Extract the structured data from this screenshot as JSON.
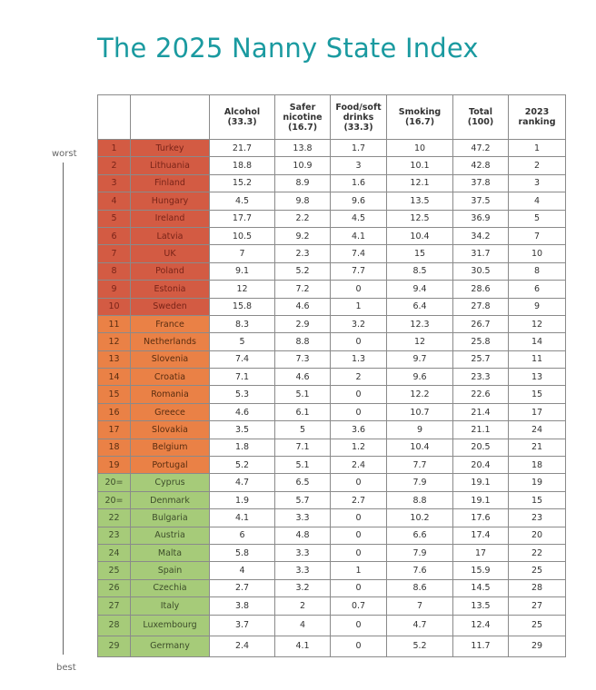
{
  "title": "The 2025 Nanny State Index",
  "scale": {
    "top_label": "worst",
    "bottom_label": "best"
  },
  "headers": {
    "rank": "",
    "country": "",
    "alcohol": [
      "Alcohol",
      "(33.3)"
    ],
    "nicotine": [
      "Safer",
      "nicotine",
      "(16.7)"
    ],
    "food": [
      "Food/soft",
      "drinks",
      "(33.3)"
    ],
    "smoking": [
      "Smoking",
      "(16.7)"
    ],
    "total": [
      "Total",
      "(100)"
    ],
    "ranking": [
      "2023",
      "ranking"
    ]
  },
  "colors": {
    "worst": "#d35b43",
    "middle": "#ea8146",
    "best": "#a6cb79",
    "title": "#1a9aa0"
  },
  "rows": [
    {
      "rank": "1",
      "country": "Turkey",
      "alcohol": "21.7",
      "nicotine": "13.8",
      "food": "1.7",
      "smoking": "10",
      "total": "47.2",
      "r2023": "1",
      "band": "red"
    },
    {
      "rank": "2",
      "country": "Lithuania",
      "alcohol": "18.8",
      "nicotine": "10.9",
      "food": "3",
      "smoking": "10.1",
      "total": "42.8",
      "r2023": "2",
      "band": "red"
    },
    {
      "rank": "3",
      "country": "Finland",
      "alcohol": "15.2",
      "nicotine": "8.9",
      "food": "1.6",
      "smoking": "12.1",
      "total": "37.8",
      "r2023": "3",
      "band": "red"
    },
    {
      "rank": "4",
      "country": "Hungary",
      "alcohol": "4.5",
      "nicotine": "9.8",
      "food": "9.6",
      "smoking": "13.5",
      "total": "37.5",
      "r2023": "4",
      "band": "red"
    },
    {
      "rank": "5",
      "country": "Ireland",
      "alcohol": "17.7",
      "nicotine": "2.2",
      "food": "4.5",
      "smoking": "12.5",
      "total": "36.9",
      "r2023": "5",
      "band": "red"
    },
    {
      "rank": "6",
      "country": "Latvia",
      "alcohol": "10.5",
      "nicotine": "9.2",
      "food": "4.1",
      "smoking": "10.4",
      "total": "34.2",
      "r2023": "7",
      "band": "red"
    },
    {
      "rank": "7",
      "country": "UK",
      "alcohol": "7",
      "nicotine": "2.3",
      "food": "7.4",
      "smoking": "15",
      "total": "31.7",
      "r2023": "10",
      "band": "red"
    },
    {
      "rank": "8",
      "country": "Poland",
      "alcohol": "9.1",
      "nicotine": "5.2",
      "food": "7.7",
      "smoking": "8.5",
      "total": "30.5",
      "r2023": "8",
      "band": "red"
    },
    {
      "rank": "9",
      "country": "Estonia",
      "alcohol": "12",
      "nicotine": "7.2",
      "food": "0",
      "smoking": "9.4",
      "total": "28.6",
      "r2023": "6",
      "band": "red"
    },
    {
      "rank": "10",
      "country": "Sweden",
      "alcohol": "15.8",
      "nicotine": "4.6",
      "food": "1",
      "smoking": "6.4",
      "total": "27.8",
      "r2023": "9",
      "band": "red"
    },
    {
      "rank": "11",
      "country": "France",
      "alcohol": "8.3",
      "nicotine": "2.9",
      "food": "3.2",
      "smoking": "12.3",
      "total": "26.7",
      "r2023": "12",
      "band": "orange"
    },
    {
      "rank": "12",
      "country": "Netherlands",
      "alcohol": "5",
      "nicotine": "8.8",
      "food": "0",
      "smoking": "12",
      "total": "25.8",
      "r2023": "14",
      "band": "orange"
    },
    {
      "rank": "13",
      "country": "Slovenia",
      "alcohol": "7.4",
      "nicotine": "7.3",
      "food": "1.3",
      "smoking": "9.7",
      "total": "25.7",
      "r2023": "11",
      "band": "orange"
    },
    {
      "rank": "14",
      "country": "Croatia",
      "alcohol": "7.1",
      "nicotine": "4.6",
      "food": "2",
      "smoking": "9.6",
      "total": "23.3",
      "r2023": "13",
      "band": "orange"
    },
    {
      "rank": "15",
      "country": "Romania",
      "alcohol": "5.3",
      "nicotine": "5.1",
      "food": "0",
      "smoking": "12.2",
      "total": "22.6",
      "r2023": "15",
      "band": "orange"
    },
    {
      "rank": "16",
      "country": "Greece",
      "alcohol": "4.6",
      "nicotine": "6.1",
      "food": "0",
      "smoking": "10.7",
      "total": "21.4",
      "r2023": "17",
      "band": "orange"
    },
    {
      "rank": "17",
      "country": "Slovakia",
      "alcohol": "3.5",
      "nicotine": "5",
      "food": "3.6",
      "smoking": "9",
      "total": "21.1",
      "r2023": "24",
      "band": "orange"
    },
    {
      "rank": "18",
      "country": "Belgium",
      "alcohol": "1.8",
      "nicotine": "7.1",
      "food": "1.2",
      "smoking": "10.4",
      "total": "20.5",
      "r2023": "21",
      "band": "orange"
    },
    {
      "rank": "19",
      "country": "Portugal",
      "alcohol": "5.2",
      "nicotine": "5.1",
      "food": "2.4",
      "smoking": "7.7",
      "total": "20.4",
      "r2023": "18",
      "band": "orange"
    },
    {
      "rank": "20=",
      "country": "Cyprus",
      "alcohol": "4.7",
      "nicotine": "6.5",
      "food": "0",
      "smoking": "7.9",
      "total": "19.1",
      "r2023": "19",
      "band": "green"
    },
    {
      "rank": "20=",
      "country": "Denmark",
      "alcohol": "1.9",
      "nicotine": "5.7",
      "food": "2.7",
      "smoking": "8.8",
      "total": "19.1",
      "r2023": "15",
      "band": "green"
    },
    {
      "rank": "22",
      "country": "Bulgaria",
      "alcohol": "4.1",
      "nicotine": "3.3",
      "food": "0",
      "smoking": "10.2",
      "total": "17.6",
      "r2023": "23",
      "band": "green"
    },
    {
      "rank": "23",
      "country": "Austria",
      "alcohol": "6",
      "nicotine": "4.8",
      "food": "0",
      "smoking": "6.6",
      "total": "17.4",
      "r2023": "20",
      "band": "green"
    },
    {
      "rank": "24",
      "country": "Malta",
      "alcohol": "5.8",
      "nicotine": "3.3",
      "food": "0",
      "smoking": "7.9",
      "total": "17",
      "r2023": "22",
      "band": "green"
    },
    {
      "rank": "25",
      "country": "Spain",
      "alcohol": "4",
      "nicotine": "3.3",
      "food": "1",
      "smoking": "7.6",
      "total": "15.9",
      "r2023": "25",
      "band": "green"
    },
    {
      "rank": "26",
      "country": "Czechia",
      "alcohol": "2.7",
      "nicotine": "3.2",
      "food": "0",
      "smoking": "8.6",
      "total": "14.5",
      "r2023": "28",
      "band": "green"
    },
    {
      "rank": "27",
      "country": "Italy",
      "alcohol": "3.8",
      "nicotine": "2",
      "food": "0.7",
      "smoking": "7",
      "total": "13.5",
      "r2023": "27",
      "band": "green"
    },
    {
      "rank": "28",
      "country": "Luxembourg",
      "alcohol": "3.7",
      "nicotine": "4",
      "food": "0",
      "smoking": "4.7",
      "total": "12.4",
      "r2023": "25",
      "band": "green"
    },
    {
      "rank": "29",
      "country": "Germany",
      "alcohol": "2.4",
      "nicotine": "4.1",
      "food": "0",
      "smoking": "5.2",
      "total": "11.7",
      "r2023": "29",
      "band": "green"
    }
  ]
}
